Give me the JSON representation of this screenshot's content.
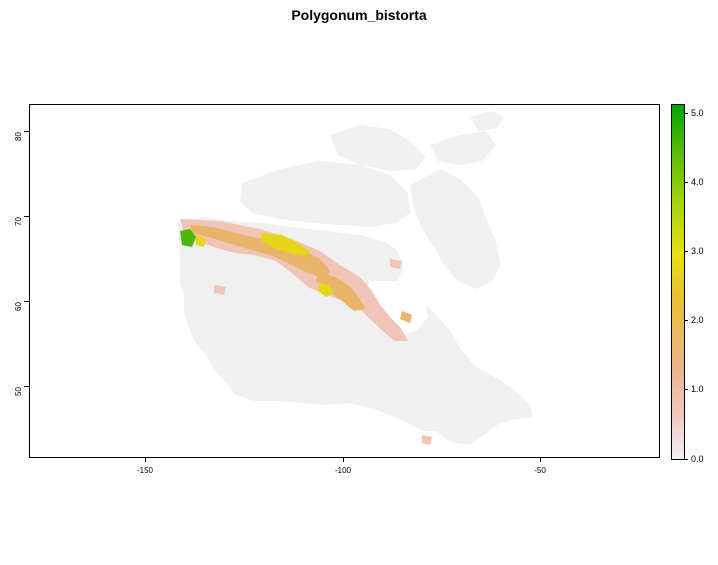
{
  "title": "Polygonum_bistorta",
  "x_axis": {
    "ticks": [
      "-150",
      "-100",
      "-50"
    ]
  },
  "y_axis": {
    "ticks": [
      "50",
      "60",
      "70",
      "80"
    ]
  },
  "legend": {
    "ticks": [
      "0.0",
      "1.0",
      "2.0",
      "3.0",
      "4.0",
      "5.0"
    ]
  },
  "colors": {
    "land": "#f0f0f0",
    "low": "#f0c4b6",
    "mid": "#e8b46a",
    "high": "#e6d51a",
    "top": "#4cb808"
  }
}
